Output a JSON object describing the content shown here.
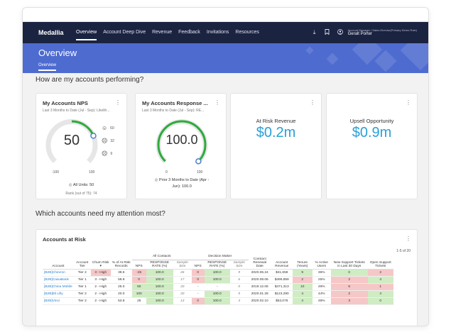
{
  "nav": {
    "brand": "Medallia",
    "tabs": [
      "Overview",
      "Account Deep Dive",
      "Revenue",
      "Feedback",
      "Invitations",
      "Resources"
    ],
    "active_tab": 0,
    "user_role": "Account Manager / Sales Director(Primary Demo Role)",
    "user_name": "Geralt Porter",
    "icons": [
      "download-icon",
      "bookmark-icon",
      "user-icon"
    ]
  },
  "header": {
    "title": "Overview",
    "subtab": "Overview"
  },
  "sections": {
    "performing": "How are my accounts performing?",
    "attention": "Which accounts need my attention most?"
  },
  "nps_card": {
    "title": "My Accounts NPS",
    "subtitle": "Last 3 Months to Date (Jul - Sep): Likelih...",
    "value": "50",
    "min": "-100",
    "max": "100",
    "gauge_fraction": 0.75,
    "promoters": "60",
    "passives": "32",
    "detractors": "9",
    "units_label": "All Units: 50",
    "rank_label": "Rank (out of 75): 74",
    "accent": "#2eaa3c"
  },
  "response_card": {
    "title": "My Accounts Response ...",
    "subtitle": "Last 3 Months to Date (Jul - Sep): RE...",
    "value": "100.0",
    "min": "0",
    "max": "100",
    "gauge_fraction": 1.0,
    "prior_label": "Prior 3 Months to Date (Apr - Jun): 100.0"
  },
  "risk_card": {
    "label": "At Risk Revenue",
    "value": "$0.2m"
  },
  "upsell_card": {
    "label": "Upsell Opportunity",
    "value": "$0.9m"
  },
  "accounts_table": {
    "title": "Accounts at Risk",
    "count": "1-5 of 20",
    "group_headers": {
      "all_contacts": "All Contacts",
      "decision_maker": "Decision Maker"
    },
    "columns": [
      "Account",
      "Account Tier",
      "Churn Risk",
      "% of At Risk Records",
      "NPS",
      "RESPONSE RATE (%)",
      "Sample Size",
      "NPS",
      "RESPONSE RATE (%)",
      "Sample Size",
      "Contract Renewal Date",
      "Account Revenue",
      "Tenure (Years)",
      "% Active Users",
      "New Support Tickets in Last 30 Days",
      "Open Support Tickets"
    ],
    "rows": [
      {
        "account": "[B2B]Chevron",
        "tier": "Tier 2",
        "risk": "3 - High",
        "pct": "38.5",
        "nps": "-25",
        "rr": "100.0",
        "ss": "26",
        "dm_nps": "0",
        "dm_rr": "100.0",
        "dm_ss": "9",
        "renewal": "2020.06.24",
        "revenue": "$41,658",
        "tenure": "9",
        "active": "36%",
        "new_tickets": "0",
        "open_tickets": "2",
        "colors": {
          "risk": "red",
          "nps": "red",
          "rr": "green",
          "dm_nps": "red",
          "dm_rr": "green",
          "tenure": "green",
          "new_tickets": "green",
          "open_tickets": "red"
        }
      },
      {
        "account": "[B2B]CaixaBank",
        "tier": "Tier 1",
        "risk": "3 - High",
        "pct": "58.8",
        "nps": "0",
        "rr": "100.0",
        "ss": "17",
        "dm_nps": "0",
        "dm_rr": "100.0",
        "dm_ss": "6",
        "renewal": "2020.08.06",
        "revenue": "$499,859",
        "tenure": "2",
        "active": "25%",
        "new_tickets": "2",
        "open_tickets": "4",
        "colors": {
          "nps": "red",
          "rr": "green",
          "dm_nps": "red",
          "dm_rr": "green",
          "tenure": "red",
          "new_tickets": "red",
          "open_tickets": "green"
        }
      },
      {
        "account": "[B2B]China Mobile",
        "tier": "Tier 1",
        "risk": "2 - High",
        "pct": "25.0",
        "nps": "50",
        "rr": "100.0",
        "ss": "20",
        "dm_nps": "-",
        "dm_rr": "-",
        "dm_ss": "0",
        "renewal": "2019.12.06",
        "revenue": "$471,313",
        "tenure": "10",
        "active": "49%",
        "new_tickets": "6",
        "open_tickets": "1",
        "colors": {
          "nps": "green",
          "rr": "green",
          "tenure": "green",
          "new_tickets": "red",
          "open_tickets": "red"
        }
      },
      {
        "account": "[B2B]Eli Lilly",
        "tier": "Tier 2",
        "risk": "2 - High",
        "pct": "20.0",
        "nps": "100",
        "rr": "100.0",
        "ss": "20",
        "dm_nps": "-",
        "dm_rr": "100.0",
        "dm_ss": "5",
        "renewal": "2020.01.28",
        "revenue": "$123,290",
        "tenure": "4",
        "active": "44%",
        "new_tickets": "2",
        "open_tickets": "4",
        "colors": {
          "nps": "green",
          "rr": "green",
          "dm_rr": "green",
          "tenure": "green",
          "new_tickets": "red",
          "open_tickets": "green"
        }
      },
      {
        "account": "[B2B]Vinci",
        "tier": "Tier 2",
        "risk": "2 - High",
        "pct": "53.8",
        "nps": "25",
        "rr": "100.0",
        "ss": "13",
        "dm_nps": "0",
        "dm_rr": "100.0",
        "dm_ss": "4",
        "renewal": "2020.02.10",
        "revenue": "$53,076",
        "tenure": "4",
        "active": "48%",
        "new_tickets": "3",
        "open_tickets": "0",
        "colors": {
          "rr": "green",
          "dm_nps": "red",
          "dm_rr": "green",
          "tenure": "green",
          "new_tickets": "red",
          "open_tickets": "green"
        }
      }
    ]
  }
}
